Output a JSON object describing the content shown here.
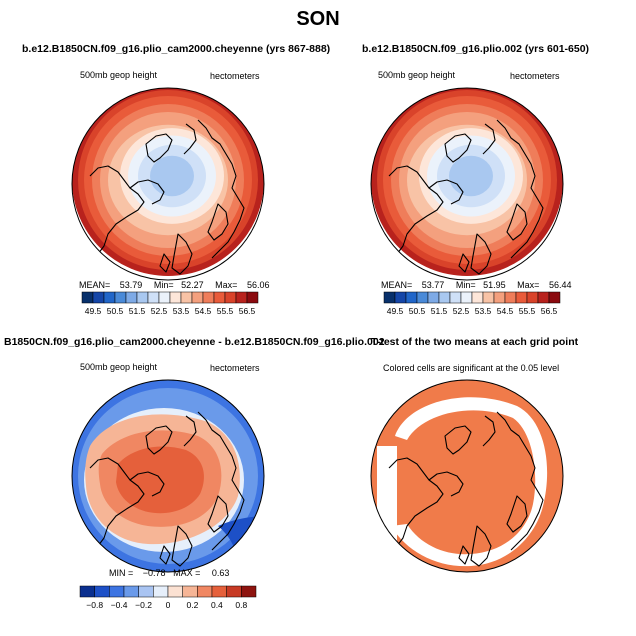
{
  "season": "SON",
  "panels": [
    {
      "title": "b.e12.B1850CN.f09_g16.plio_cam2000.cheyenne (yrs 867-888)",
      "left_label": "500mb geop height",
      "right_label": "hectometers",
      "stats": {
        "mean_label": "MEAN=",
        "mean": "53.79",
        "min_label": "Min=",
        "min": "52.27",
        "max_label": "Max=",
        "max": "56.06"
      },
      "colorbar_ticks": [
        "49.5",
        "50.5",
        "51.5",
        "52.5",
        "53.5",
        "54.5",
        "55.5",
        "56.5"
      ]
    },
    {
      "title": "b.e12.B1850CN.f09_g16.plio.002 (yrs 601-650)",
      "left_label": "500mb geop height",
      "right_label": "hectometers",
      "stats": {
        "mean_label": "MEAN=",
        "mean": "53.77",
        "min_label": "Min=",
        "min": "51.95",
        "max_label": "Max=",
        "max": "56.44"
      },
      "colorbar_ticks": [
        "49.5",
        "50.5",
        "51.5",
        "52.5",
        "53.5",
        "54.5",
        "55.5",
        "56.5"
      ]
    },
    {
      "title": "B1850CN.f09_g16.plio_cam2000.cheyenne - b.e12.B1850CN.f09_g16.plio.002",
      "left_label": "500mb geop height",
      "right_label": "hectometers",
      "stats": {
        "min_label": "MIN =",
        "min": "−0.78",
        "max_label": "MAX =",
        "max": "0.63"
      },
      "colorbar_ticks": [
        "−0.8",
        "−0.4",
        "−0.2",
        "0",
        "0.2",
        "0.4",
        "0.8"
      ]
    },
    {
      "title": "T-test of the two means at each grid point",
      "subtitle": "Colored cells are significant at the 0.05 level"
    }
  ],
  "colors": {
    "abs_scale": [
      "#08306b",
      "#1546a8",
      "#2166c9",
      "#4a8ad8",
      "#7eaae6",
      "#a9c8f0",
      "#cfe0f7",
      "#ebf2fb",
      "#fde6d9",
      "#f8c3a6",
      "#f4a07e",
      "#ef7d5a",
      "#e95b3a",
      "#d9432a",
      "#b8221d",
      "#8b0a0f"
    ],
    "diff_scale": [
      "#0a2f8f",
      "#1d50c7",
      "#3d74e2",
      "#6a9aea",
      "#a9c4f2",
      "#e6effb",
      "#fbe1d2",
      "#f6b596",
      "#f08762",
      "#e5603b",
      "#c73a24",
      "#8e140f"
    ],
    "ttest": "#f07b4a"
  }
}
